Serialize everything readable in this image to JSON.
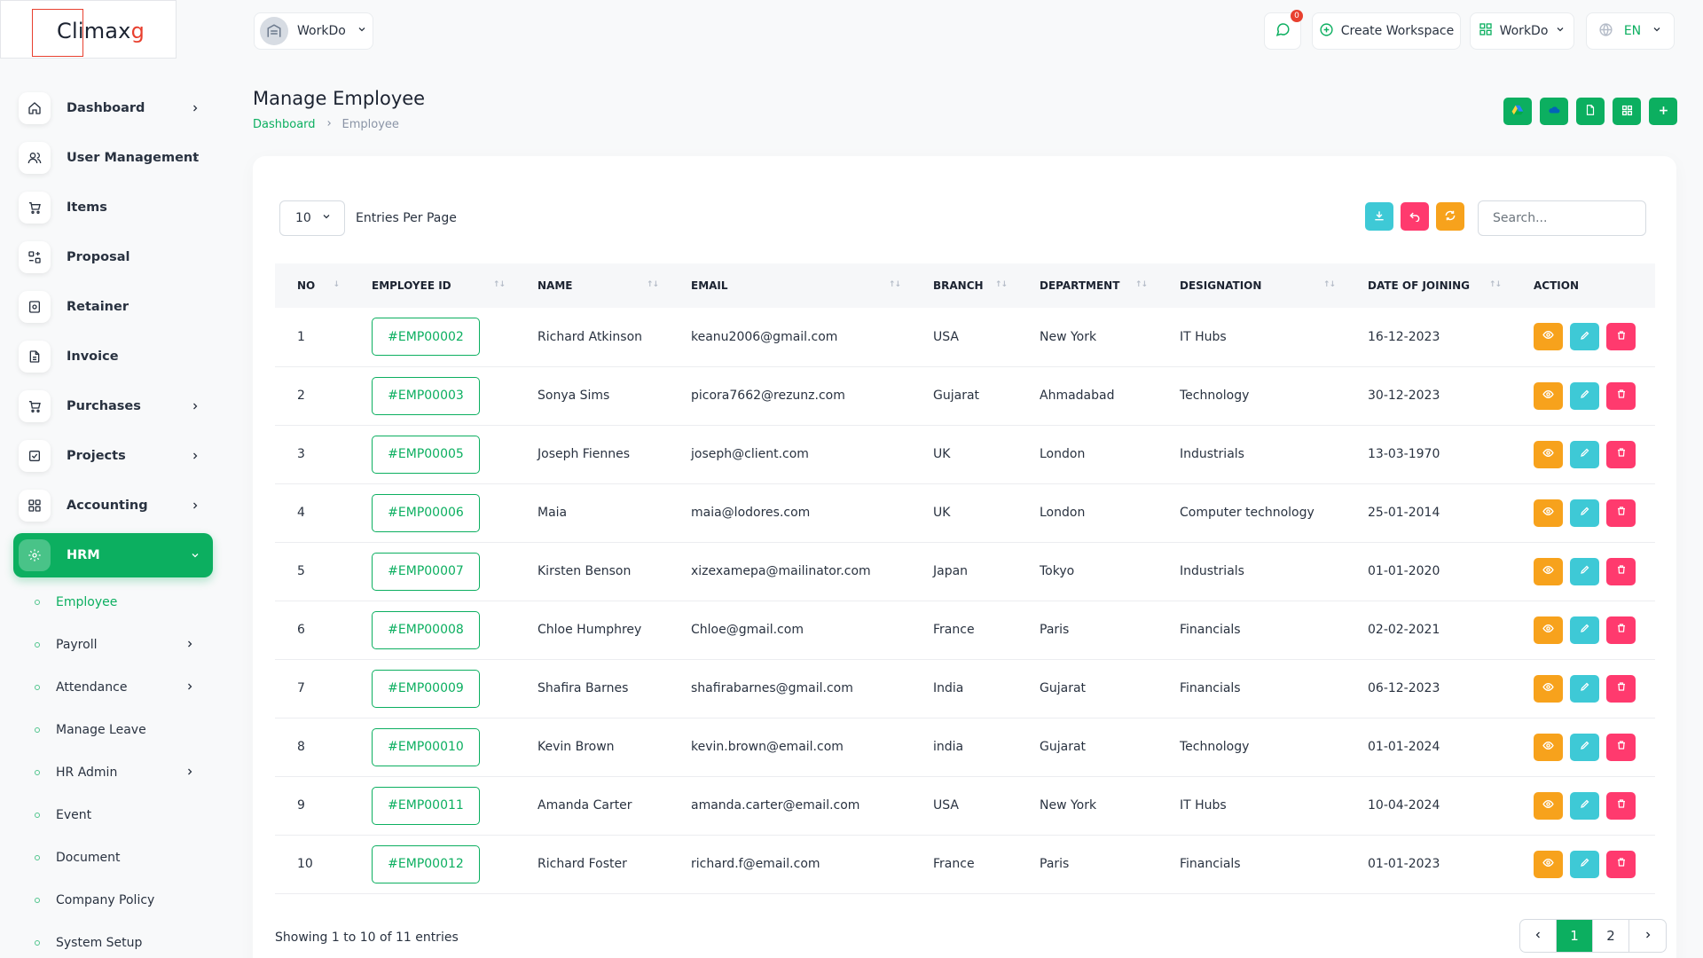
{
  "brand": {
    "logo_main": "Climax",
    "logo_accent": "g"
  },
  "colors": {
    "accent": "#0CAF60",
    "view": "#F7A21C",
    "edit": "#3EC9D6",
    "delete": "#FF3A6E"
  },
  "header": {
    "workspace": "WorkDo",
    "chat_badge": "0",
    "create_workspace": "Create Workspace",
    "workspace_switch": "WorkDo",
    "language": "EN"
  },
  "sidebar": {
    "items": [
      {
        "label": "Dashboard",
        "icon": "home-icon"
      },
      {
        "label": "User Management",
        "icon": "users-icon"
      },
      {
        "label": "Items",
        "icon": "cart-icon"
      },
      {
        "label": "Proposal",
        "icon": "proposal-icon"
      },
      {
        "label": "Retainer",
        "icon": "retainer-icon"
      },
      {
        "label": "Invoice",
        "icon": "invoice-icon"
      },
      {
        "label": "Purchases",
        "icon": "cart-icon"
      },
      {
        "label": "Projects",
        "icon": "checklist-icon"
      },
      {
        "label": "Accounting",
        "icon": "grid-icon"
      },
      {
        "label": "HRM",
        "icon": "hrm-icon"
      }
    ],
    "sub_items": [
      "Employee",
      "Payroll",
      "Attendance",
      "Manage Leave",
      "HR Admin",
      "Event",
      "Document",
      "Company Policy",
      "System Setup"
    ]
  },
  "page": {
    "title": "Manage Employee",
    "breadcrumb": [
      "Dashboard",
      "Employee"
    ]
  },
  "table_controls": {
    "per_page": "10",
    "per_page_label": "Entries Per Page",
    "search_placeholder": "Search..."
  },
  "table": {
    "columns": [
      "NO",
      "EMPLOYEE ID",
      "NAME",
      "EMAIL",
      "BRANCH",
      "DEPARTMENT",
      "DESIGNATION",
      "DATE OF JOINING",
      "ACTION"
    ],
    "rows": [
      {
        "no": "1",
        "id": "#EMP00002",
        "name": "Richard Atkinson",
        "email": "keanu2006@gmail.com",
        "branch": "USA",
        "department": "New York",
        "designation": "IT Hubs",
        "doj": "16-12-2023"
      },
      {
        "no": "2",
        "id": "#EMP00003",
        "name": "Sonya Sims",
        "email": "picora7662@rezunz.com",
        "branch": "Gujarat",
        "department": "Ahmadabad",
        "designation": "Technology",
        "doj": "30-12-2023"
      },
      {
        "no": "3",
        "id": "#EMP00005",
        "name": "Joseph Fiennes",
        "email": "joseph@client.com",
        "branch": "UK",
        "department": "London",
        "designation": "Industrials",
        "doj": "13-03-1970"
      },
      {
        "no": "4",
        "id": "#EMP00006",
        "name": "Maia",
        "email": "maia@lodores.com",
        "branch": "UK",
        "department": "London",
        "designation": "Computer technology",
        "doj": "25-01-2014"
      },
      {
        "no": "5",
        "id": "#EMP00007",
        "name": "Kirsten Benson",
        "email": "xizexamepa@mailinator.com",
        "branch": "Japan",
        "department": "Tokyo",
        "designation": "Industrials",
        "doj": "01-01-2020"
      },
      {
        "no": "6",
        "id": "#EMP00008",
        "name": "Chloe Humphrey",
        "email": "Chloe@gmail.com",
        "branch": "France",
        "department": "Paris",
        "designation": "Financials",
        "doj": "02-02-2021"
      },
      {
        "no": "7",
        "id": "#EMP00009",
        "name": "Shafira Barnes",
        "email": "shafirabarnes@gmail.com",
        "branch": "India",
        "department": "Gujarat",
        "designation": "Financials",
        "doj": "06-12-2023"
      },
      {
        "no": "8",
        "id": "#EMP00010",
        "name": "Kevin Brown",
        "email": "kevin.brown@email.com",
        "branch": "india",
        "department": "Gujarat",
        "designation": "Technology",
        "doj": "01-01-2024"
      },
      {
        "no": "9",
        "id": "#EMP00011",
        "name": "Amanda Carter",
        "email": "amanda.carter@email.com",
        "branch": "USA",
        "department": "New York",
        "designation": "IT Hubs",
        "doj": "10-04-2024"
      },
      {
        "no": "10",
        "id": "#EMP00012",
        "name": "Richard Foster",
        "email": "richard.f@email.com",
        "branch": "France",
        "department": "Paris",
        "designation": "Financials",
        "doj": "01-01-2023"
      }
    ]
  },
  "footer": {
    "showing": "Showing 1 to 10 of 11 entries",
    "pages": [
      "1",
      "2"
    ],
    "current_page": "1"
  }
}
